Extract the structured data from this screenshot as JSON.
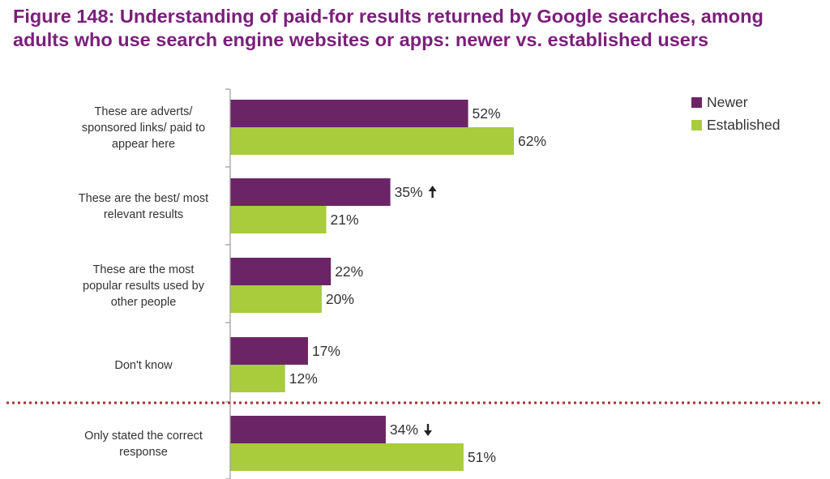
{
  "figure": {
    "title_line1": "Figure 148: Understanding of paid-for results returned by Google searches, among",
    "title_line2": "adults who use search engine websites or apps: newer vs. established users"
  },
  "chart_data": {
    "type": "bar",
    "orientation": "horizontal",
    "title": "Figure 148: Understanding of paid-for results returned by Google searches, among adults who use search engine websites or apps: newer vs. established users",
    "categories": [
      [
        "These are adverts/",
        "sponsored links/ paid to",
        "appear here"
      ],
      [
        "These are the best/ most",
        "relevant results"
      ],
      [
        "These are the most",
        "popular results used by",
        "other people"
      ],
      [
        "Don't know"
      ],
      [
        "Only stated the correct",
        "response"
      ]
    ],
    "series": [
      {
        "name": "Newer",
        "color": "#6b2566",
        "values": [
          52,
          35,
          22,
          17,
          34
        ],
        "markers": [
          "",
          "up-arrow",
          "",
          "",
          "down-arrow"
        ]
      },
      {
        "name": "Established",
        "color": "#a8cc3c",
        "values": [
          62,
          21,
          20,
          12,
          51
        ],
        "markers": [
          "",
          "",
          "",
          "",
          ""
        ]
      }
    ],
    "value_suffix": "%",
    "xlim": [
      0,
      100
    ],
    "legend_position": "top-right",
    "separator_before_category": 4,
    "separator_color": "#a83232",
    "grid": false
  }
}
